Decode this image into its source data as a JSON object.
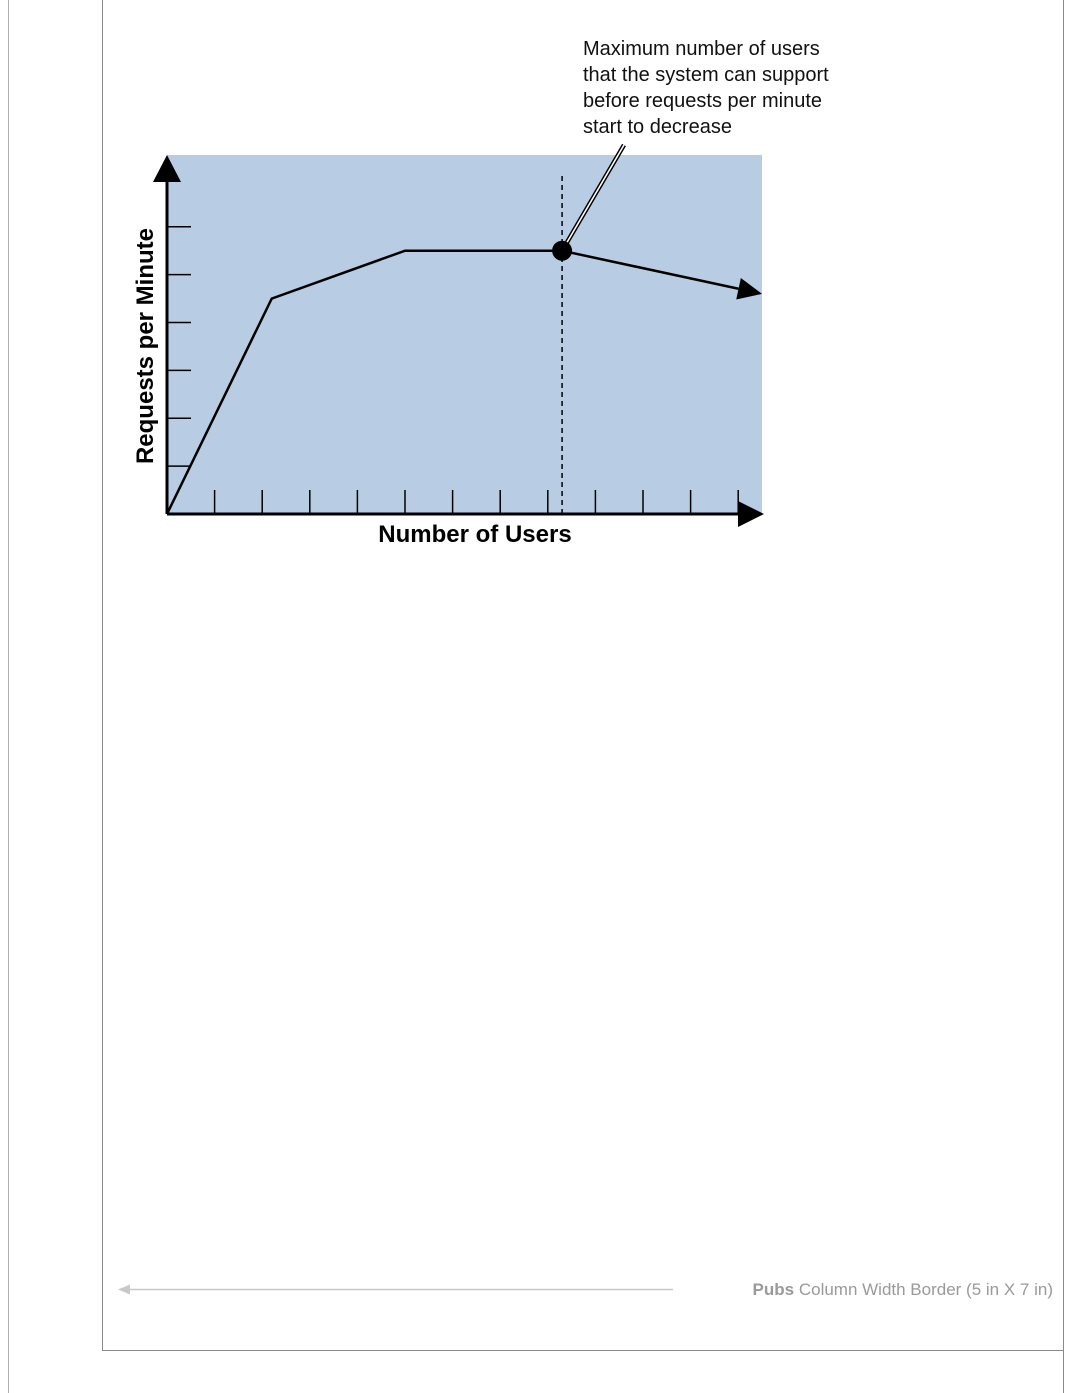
{
  "chart_data": {
    "type": "line",
    "title": "",
    "xlabel": "Number of Users",
    "ylabel": "Requests per Minute",
    "xlim": [
      0,
      12.5
    ],
    "ylim": [
      0,
      7.5
    ],
    "x_ticks": 12,
    "y_ticks": 6,
    "grid": false,
    "plot_background": "#b8cde3",
    "series": [
      {
        "x": [
          0,
          2.2,
          5,
          8.3,
          12.5
        ],
        "values": [
          0,
          4.5,
          5.5,
          5.5,
          4.6
        ]
      }
    ],
    "marker": {
      "x": 8.3,
      "y": 5.5
    },
    "annotation": {
      "lines": [
        "Maximum number of users",
        "that the system can support",
        "before requests per minute",
        "start to decrease"
      ]
    }
  },
  "footer": {
    "bold": "Pubs",
    "text": " Column Width Border (5 in X 7 in)",
    "line_color": "#c8c8c8",
    "text_color": "#9a9a9a"
  }
}
